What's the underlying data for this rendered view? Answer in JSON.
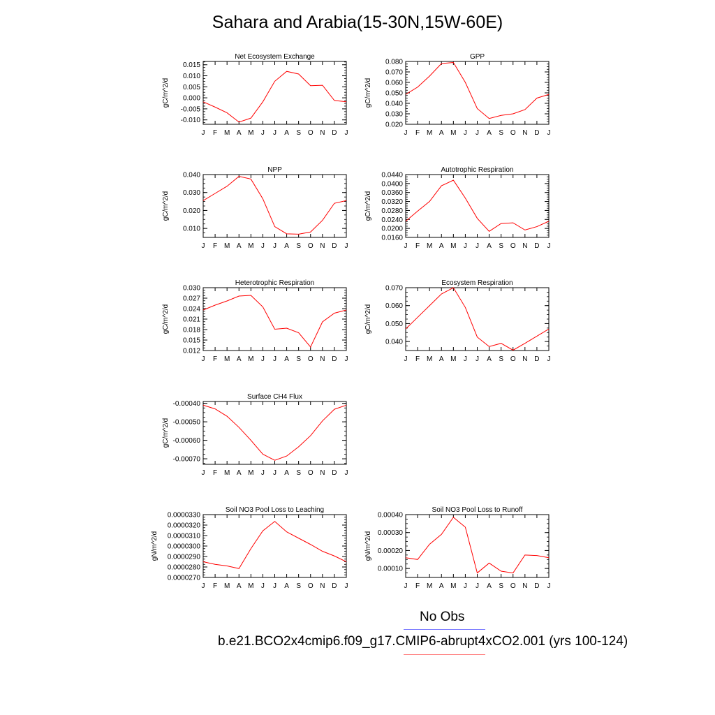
{
  "title": "Sahara and Arabia(15-30N,15W-60E)",
  "legend": {
    "obs_label": "No Obs",
    "case_label": "b.e21.BCO2x4cmip6.f09_g17.CMIP6-abrupt4xCO2.001 (yrs 100-124)",
    "obs_color": "#0000ff",
    "case_color": "#ff0000"
  },
  "chart_data": [
    {
      "type": "line",
      "title": "Net Ecosystem Exchange",
      "ylabel": "gC/m^2/d",
      "categories": [
        "J",
        "F",
        "M",
        "A",
        "M",
        "J",
        "J",
        "A",
        "S",
        "O",
        "N",
        "D",
        "J"
      ],
      "ylim": [
        -0.012,
        0.0165
      ],
      "yticks": [
        -0.01,
        -0.005,
        0.0,
        0.005,
        0.01,
        0.015
      ],
      "yticklabels": [
        "-0.010",
        "-0.005",
        "0.000",
        "0.005",
        "0.010",
        "0.015"
      ],
      "series": [
        {
          "color": "#ff0000",
          "values": [
            -0.0018,
            -0.0042,
            -0.0068,
            -0.011,
            -0.0092,
            -0.0018,
            0.0075,
            0.012,
            0.0108,
            0.0055,
            0.0057,
            -0.0012,
            -0.0018
          ]
        }
      ]
    },
    {
      "type": "line",
      "title": "GPP",
      "ylabel": "gC/m^2/d",
      "categories": [
        "J",
        "F",
        "M",
        "A",
        "M",
        "J",
        "J",
        "A",
        "S",
        "O",
        "N",
        "D",
        "J"
      ],
      "ylim": [
        0.02,
        0.08
      ],
      "yticks": [
        0.02,
        0.03,
        0.04,
        0.05,
        0.06,
        0.07,
        0.08
      ],
      "yticklabels": [
        "0.020",
        "0.030",
        "0.040",
        "0.050",
        "0.060",
        "0.070",
        "0.080"
      ],
      "series": [
        {
          "color": "#ff0000",
          "values": [
            0.0485,
            0.0555,
            0.066,
            0.078,
            0.079,
            0.06,
            0.035,
            0.0255,
            0.0285,
            0.03,
            0.034,
            0.045,
            0.0485
          ]
        }
      ]
    },
    {
      "type": "line",
      "title": "NPP",
      "ylabel": "gC/m^2/d",
      "categories": [
        "J",
        "F",
        "M",
        "A",
        "M",
        "J",
        "J",
        "A",
        "S",
        "O",
        "N",
        "D",
        "J"
      ],
      "ylim": [
        0.005,
        0.04
      ],
      "yticks": [
        0.01,
        0.02,
        0.03,
        0.04
      ],
      "yticklabels": [
        "0.010",
        "0.020",
        "0.030",
        "0.040"
      ],
      "series": [
        {
          "color": "#ff0000",
          "values": [
            0.0255,
            0.0295,
            0.0335,
            0.039,
            0.0375,
            0.0265,
            0.011,
            0.007,
            0.0068,
            0.008,
            0.0145,
            0.024,
            0.0255
          ]
        }
      ]
    },
    {
      "type": "line",
      "title": "Autotrophic Respiration",
      "ylabel": "gC/m^2/d",
      "categories": [
        "J",
        "F",
        "M",
        "A",
        "M",
        "J",
        "J",
        "A",
        "S",
        "O",
        "N",
        "D",
        "J"
      ],
      "ylim": [
        0.016,
        0.044
      ],
      "yticks": [
        0.016,
        0.02,
        0.024,
        0.028,
        0.032,
        0.036,
        0.04,
        0.044
      ],
      "yticklabels": [
        "0.0160",
        "0.0200",
        "0.0240",
        "0.0280",
        "0.0320",
        "0.0360",
        "0.0400",
        "0.0440"
      ],
      "series": [
        {
          "color": "#ff0000",
          "values": [
            0.0232,
            0.0277,
            0.032,
            0.039,
            0.0415,
            0.0335,
            0.0245,
            0.0187,
            0.0222,
            0.0225,
            0.0193,
            0.0208,
            0.0232
          ]
        }
      ]
    },
    {
      "type": "line",
      "title": "Heterotrophic Respiration",
      "ylabel": "gC/m^2/d",
      "categories": [
        "J",
        "F",
        "M",
        "A",
        "M",
        "J",
        "J",
        "A",
        "S",
        "O",
        "N",
        "D",
        "J"
      ],
      "ylim": [
        0.012,
        0.03
      ],
      "yticks": [
        0.012,
        0.015,
        0.018,
        0.021,
        0.024,
        0.027,
        0.03
      ],
      "yticklabels": [
        "0.012",
        "0.015",
        "0.018",
        "0.021",
        "0.024",
        "0.027",
        "0.030"
      ],
      "series": [
        {
          "color": "#ff0000",
          "values": [
            0.0236,
            0.025,
            0.0262,
            0.0276,
            0.0278,
            0.0245,
            0.0181,
            0.0184,
            0.0171,
            0.013,
            0.0202,
            0.0227,
            0.0236
          ]
        }
      ]
    },
    {
      "type": "line",
      "title": "Ecosystem Respiration",
      "ylabel": "gC/m^2/d",
      "categories": [
        "J",
        "F",
        "M",
        "A",
        "M",
        "J",
        "J",
        "A",
        "S",
        "O",
        "N",
        "D",
        "J"
      ],
      "ylim": [
        0.035,
        0.07
      ],
      "yticks": [
        0.04,
        0.05,
        0.06,
        0.07
      ],
      "yticklabels": [
        "0.040",
        "0.050",
        "0.060",
        "0.070"
      ],
      "series": [
        {
          "color": "#ff0000",
          "values": [
            0.047,
            0.0535,
            0.06,
            0.0665,
            0.07,
            0.059,
            0.0425,
            0.0372,
            0.039,
            0.0352,
            0.039,
            0.043,
            0.047
          ]
        }
      ]
    },
    {
      "type": "line",
      "title": "Surface CH4 Flux",
      "ylabel": "gC/m^2/d",
      "categories": [
        "J",
        "F",
        "M",
        "A",
        "M",
        "J",
        "J",
        "A",
        "S",
        "O",
        "N",
        "D",
        "J"
      ],
      "ylim": [
        -0.00073,
        -0.00039
      ],
      "yticks": [
        -0.0007,
        -0.0006,
        -0.0005,
        -0.0004
      ],
      "yticklabels": [
        "-0.00070",
        "-0.00060",
        "-0.00050",
        "-0.00040"
      ],
      "series": [
        {
          "color": "#ff0000",
          "values": [
            -0.00041,
            -0.00043,
            -0.00047,
            -0.00053,
            -0.0006,
            -0.000675,
            -0.000708,
            -0.000685,
            -0.000635,
            -0.000575,
            -0.000495,
            -0.000432,
            -0.00041
          ]
        }
      ]
    },
    {
      "type": "line",
      "title": "Soil NO3 Pool Loss to Leaching",
      "ylabel": "gN/m^2/d",
      "categories": [
        "J",
        "F",
        "M",
        "A",
        "M",
        "J",
        "J",
        "A",
        "S",
        "O",
        "N",
        "D",
        "J"
      ],
      "ylim": [
        2.7e-05,
        3.3e-05
      ],
      "yticks": [
        2.7e-05,
        2.8e-05,
        2.9e-05,
        3e-05,
        3.1e-05,
        3.2e-05,
        3.3e-05
      ],
      "yticklabels": [
        "0.0000270",
        "0.0000280",
        "0.0000290",
        "0.0000300",
        "0.0000310",
        "0.0000320",
        "0.0000330"
      ],
      "series": [
        {
          "color": "#ff0000",
          "values": [
            2.85e-05,
            2.825e-05,
            2.81e-05,
            2.785e-05,
            2.975e-05,
            3.145e-05,
            3.235e-05,
            3.135e-05,
            3.075e-05,
            3.015e-05,
            2.95e-05,
            2.905e-05,
            2.85e-05
          ]
        }
      ]
    },
    {
      "type": "line",
      "title": "Soil NO3 Pool Loss to Runoff",
      "ylabel": "gN/m^2/d",
      "categories": [
        "J",
        "F",
        "M",
        "A",
        "M",
        "J",
        "J",
        "A",
        "S",
        "O",
        "N",
        "D",
        "J"
      ],
      "ylim": [
        5e-05,
        0.0004
      ],
      "yticks": [
        0.0001,
        0.0002,
        0.0003,
        0.0004
      ],
      "yticklabels": [
        "0.00010",
        "0.00020",
        "0.00030",
        "0.00040"
      ],
      "series": [
        {
          "color": "#ff0000",
          "values": [
            0.00016,
            0.00015,
            0.000235,
            0.00029,
            0.000385,
            0.00033,
            7.5e-05,
            0.00013,
            8.5e-05,
            7.5e-05,
            0.000175,
            0.000172,
            0.00016
          ]
        }
      ]
    }
  ]
}
